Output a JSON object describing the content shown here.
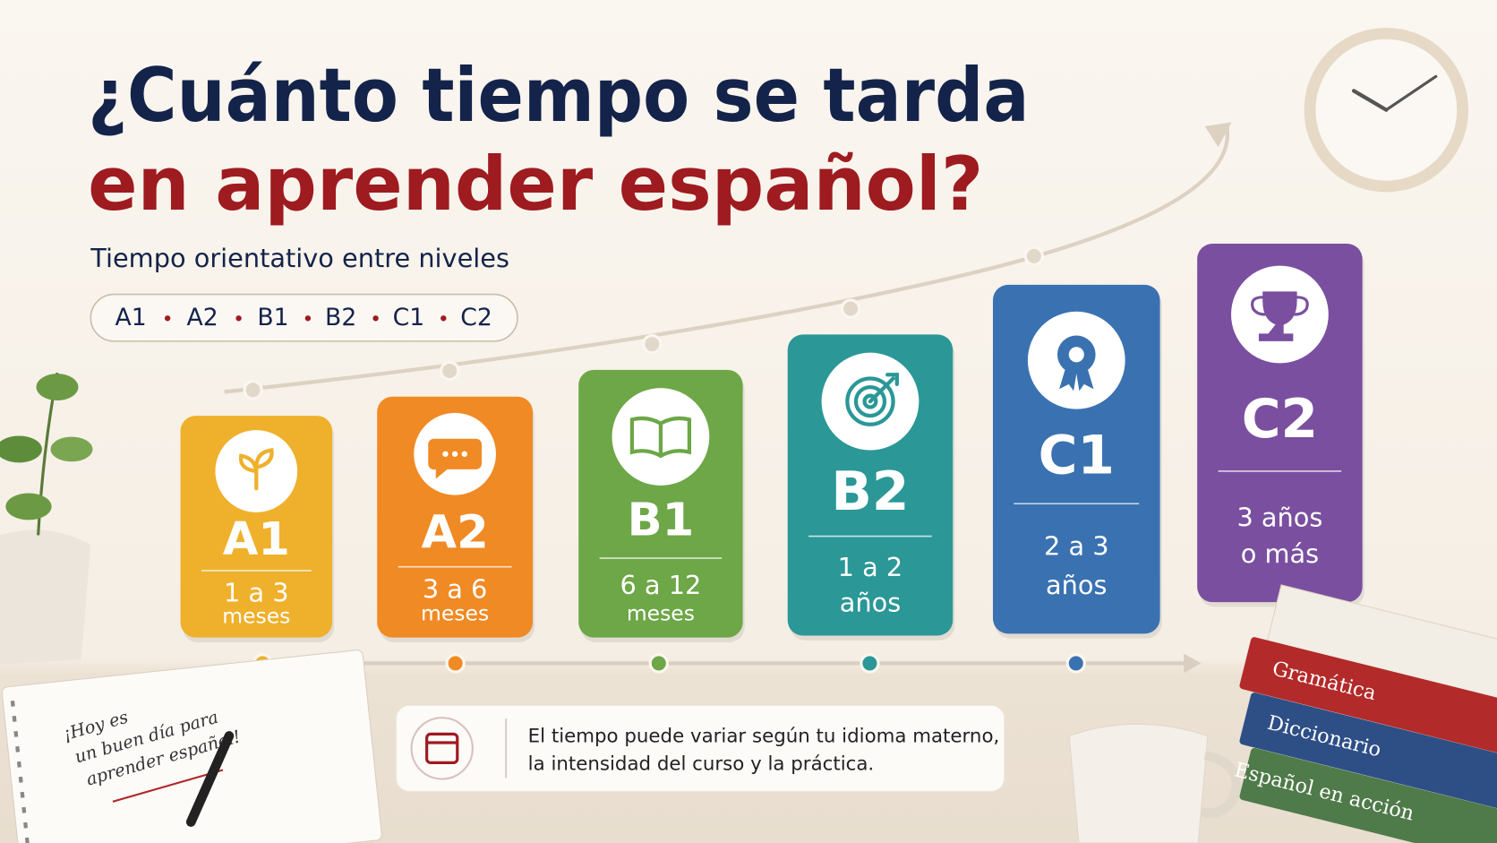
{
  "header": {
    "title_line1": "¿Cuánto tiempo se tarda",
    "title_line2": "en aprender español?",
    "subtitle": "Tiempo orientativo entre niveles"
  },
  "levels": [
    "A1",
    "A2",
    "B1",
    "B2",
    "C1",
    "C2"
  ],
  "cards": [
    {
      "level": "A1",
      "duration": [
        "1 a 3",
        "meses"
      ],
      "color": "#efb02c"
    },
    {
      "level": "A2",
      "duration": [
        "3 a 6",
        "meses"
      ],
      "color": "#f08a24"
    },
    {
      "level": "B1",
      "duration": [
        "6 a 12",
        "meses"
      ],
      "color": "#6da747"
    },
    {
      "level": "B2",
      "duration": [
        "1 a 2",
        "años"
      ],
      "color": "#2b9797"
    },
    {
      "level": "C1",
      "duration": [
        "2 a 3",
        "años"
      ],
      "color": "#3a72b1"
    },
    {
      "level": "C2",
      "duration": [
        "3 años",
        "o más"
      ],
      "color": "#7a4f9f"
    }
  ],
  "note": {
    "lines": [
      "El tiempo puede variar según tu idioma materno,",
      "la intensidad del curso y la práctica."
    ]
  },
  "notebook": {
    "lines": [
      "¡Hoy es",
      "un buen día para",
      "aprender español!"
    ]
  },
  "books": [
    "Gramática",
    "Diccionario",
    "Español en acción"
  ]
}
